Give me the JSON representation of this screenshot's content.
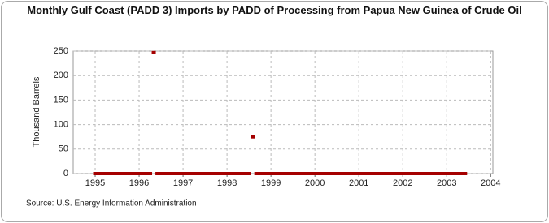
{
  "chart_data": {
    "type": "scatter",
    "title": "Monthly Gulf Coast (PADD 3) Imports by PADD of Processing from Papua New Guinea of Crude Oil",
    "y_label": "Thousand Barrels",
    "source": "Source: U.S. Energy Information Administration",
    "color": "#a50000",
    "grid": true,
    "xlim": [
      1994.5,
      2004.05
    ],
    "xticks": [
      1995,
      1996,
      1997,
      1998,
      1999,
      2000,
      2001,
      2002,
      2003,
      2004
    ],
    "ylim": [
      0,
      250
    ],
    "yticks": [
      0,
      50,
      100,
      150,
      200,
      250
    ],
    "x": [
      1995,
      1995.083,
      1995.167,
      1995.25,
      1995.333,
      1995.417,
      1995.5,
      1995.583,
      1995.667,
      1995.75,
      1995.833,
      1995.917,
      1996,
      1996.083,
      1996.167,
      1996.25,
      1996.333,
      1996.417,
      1996.5,
      1996.583,
      1996.667,
      1996.75,
      1996.833,
      1996.917,
      1997,
      1997.083,
      1997.167,
      1997.25,
      1997.333,
      1997.417,
      1997.5,
      1997.583,
      1997.667,
      1997.75,
      1997.833,
      1997.917,
      1998,
      1998.083,
      1998.167,
      1998.25,
      1998.333,
      1998.417,
      1998.5,
      1998.583,
      1998.667,
      1998.75,
      1998.833,
      1998.917,
      1999,
      1999.083,
      1999.167,
      1999.25,
      1999.333,
      1999.417,
      1999.5,
      1999.583,
      1999.667,
      1999.75,
      1999.833,
      1999.917,
      2000,
      2000.083,
      2000.167,
      2000.25,
      2000.333,
      2000.417,
      2000.5,
      2000.583,
      2000.667,
      2000.75,
      2000.833,
      2000.917,
      2001,
      2001.083,
      2001.167,
      2001.25,
      2001.333,
      2001.417,
      2001.5,
      2001.583,
      2001.667,
      2001.75,
      2001.833,
      2001.917,
      2002,
      2002.083,
      2002.167,
      2002.25,
      2002.333,
      2002.417,
      2002.5,
      2002.583,
      2002.667,
      2002.75,
      2002.833,
      2002.917,
      2003,
      2003.083,
      2003.167,
      2003.25,
      2003.333,
      2003.417
    ],
    "values": [
      0,
      0,
      0,
      0,
      0,
      0,
      0,
      0,
      0,
      0,
      0,
      0,
      0,
      0,
      0,
      0,
      247,
      0,
      0,
      0,
      0,
      0,
      0,
      0,
      0,
      0,
      0,
      0,
      0,
      0,
      0,
      0,
      0,
      0,
      0,
      0,
      0,
      0,
      0,
      0,
      0,
      0,
      0,
      75,
      0,
      0,
      0,
      0,
      0,
      0,
      0,
      0,
      0,
      0,
      0,
      0,
      0,
      0,
      0,
      0,
      0,
      0,
      0,
      0,
      0,
      0,
      0,
      0,
      0,
      0,
      0,
      0,
      0,
      0,
      0,
      0,
      0,
      0,
      0,
      0,
      0,
      0,
      0,
      0,
      0,
      0,
      0,
      0,
      0,
      0,
      0,
      0,
      0,
      0,
      0,
      0,
      0,
      0,
      0,
      0,
      0,
      0
    ]
  }
}
